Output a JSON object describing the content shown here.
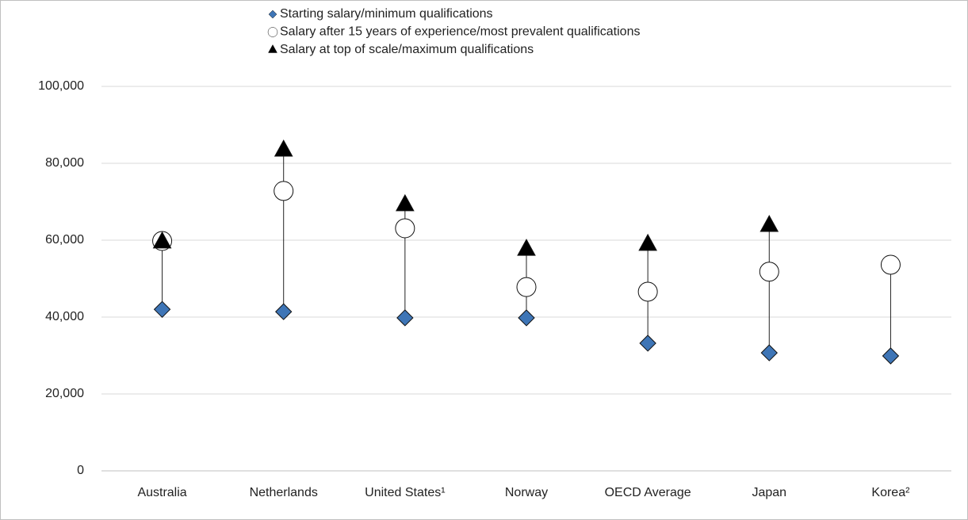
{
  "chart_data": {
    "type": "dot-range",
    "categories": [
      "Australia",
      "Netherlands",
      "United States¹",
      "Norway",
      "OECD Average",
      "Japan",
      "Korea²"
    ],
    "series": [
      {
        "name": "Starting salary/minimum qualifications",
        "marker": "diamond",
        "color": "#3e75b6",
        "values": [
          42000,
          41400,
          39800,
          39800,
          33200,
          30700,
          29900
        ]
      },
      {
        "name": "Salary after 15 years of experience/most prevalent qualifications",
        "marker": "circle",
        "color": "#ffffff",
        "values": [
          59800,
          72800,
          63100,
          47800,
          46600,
          51800,
          53600
        ]
      },
      {
        "name": "Salary at top of scale/maximum qualifications",
        "marker": "triangle",
        "color": "#000000",
        "values": [
          59400,
          83300,
          69100,
          57500,
          58800,
          63700,
          null
        ]
      }
    ],
    "ylim": [
      0,
      100000
    ],
    "yticks": [
      0,
      {
        "value": 20000,
        "label": "20,000"
      },
      {
        "value": 40000,
        "label": "40,000"
      },
      {
        "value": 60000,
        "label": "60,000"
      },
      {
        "value": 80000,
        "label": "80,000"
      },
      {
        "value": 100000,
        "label": "100,000"
      }
    ],
    "grid": true,
    "legend": "top"
  }
}
